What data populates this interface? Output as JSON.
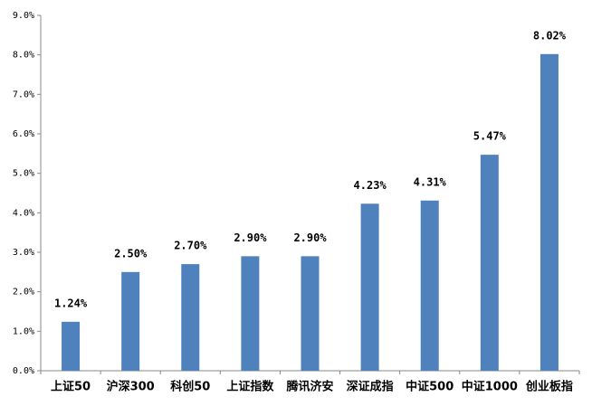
{
  "chart_data": {
    "type": "bar",
    "categories": [
      "上证50",
      "沪深300",
      "科创50",
      "上证指数",
      "腾讯济安",
      "深证成指",
      "中证500",
      "中证1000",
      "创业板指"
    ],
    "values": [
      1.24,
      2.5,
      2.7,
      2.9,
      2.9,
      4.23,
      4.31,
      5.47,
      8.02
    ],
    "value_labels": [
      "1.24%",
      "2.50%",
      "2.70%",
      "2.90%",
      "2.90%",
      "4.23%",
      "4.31%",
      "5.47%",
      "8.02%"
    ],
    "color": "#4f81bd",
    "ylim": [
      0,
      9
    ],
    "yticks": [
      {
        "value": 0,
        "label": "0.0%"
      },
      {
        "value": 1,
        "label": "1.0%"
      },
      {
        "value": 2,
        "label": "2.0%"
      },
      {
        "value": 3,
        "label": "3.0%"
      },
      {
        "value": 4,
        "label": "4.0%"
      },
      {
        "value": 5,
        "label": "5.0%"
      },
      {
        "value": 6,
        "label": "6.0%"
      },
      {
        "value": 7,
        "label": "7.0%"
      },
      {
        "value": 8,
        "label": "8.0%"
      },
      {
        "value": 9,
        "label": "9.0%"
      }
    ],
    "grid": false
  }
}
